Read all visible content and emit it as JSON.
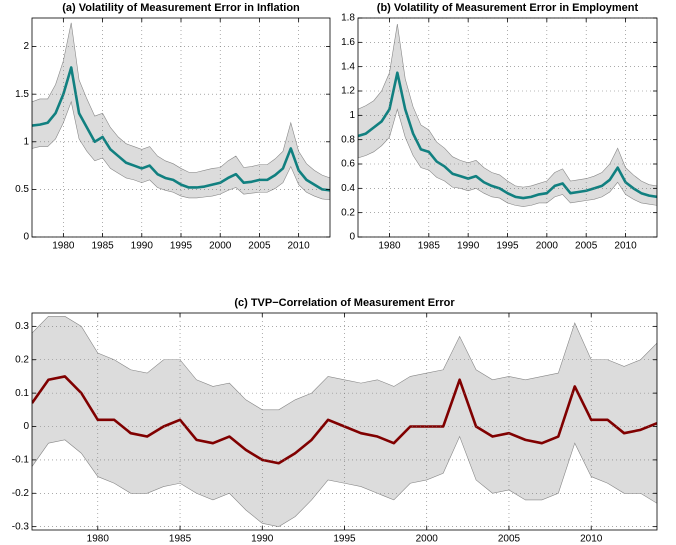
{
  "chart_data": [
    {
      "type": "line",
      "title": "(a) Volatility of Measurement Error in Inflation",
      "x": [
        1976,
        1977,
        1978,
        1979,
        1980,
        1981,
        1982,
        1983,
        1984,
        1985,
        1986,
        1987,
        1988,
        1989,
        1990,
        1991,
        1992,
        1993,
        1994,
        1995,
        1996,
        1997,
        1998,
        1999,
        2000,
        2001,
        2002,
        2003,
        2004,
        2005,
        2006,
        2007,
        2008,
        2009,
        2010,
        2011,
        2012,
        2013,
        2014
      ],
      "xlim": [
        1976,
        2014
      ],
      "xticks": [
        1980,
        1985,
        1990,
        1995,
        2000,
        2005,
        2010
      ],
      "ylim": [
        0,
        2.3
      ],
      "yticks": [
        0,
        0.5,
        1,
        1.5,
        2
      ],
      "grid": true,
      "series": [
        {
          "color": "#118080",
          "band_color": "#dcdcdc",
          "values": [
            1.17,
            1.18,
            1.2,
            1.3,
            1.5,
            1.78,
            1.3,
            1.15,
            1.0,
            1.05,
            0.92,
            0.85,
            0.78,
            0.75,
            0.72,
            0.75,
            0.66,
            0.62,
            0.6,
            0.55,
            0.52,
            0.52,
            0.53,
            0.55,
            0.57,
            0.62,
            0.66,
            0.57,
            0.58,
            0.6,
            0.6,
            0.65,
            0.72,
            0.93,
            0.7,
            0.6,
            0.55,
            0.5,
            0.49
          ],
          "lower": [
            0.93,
            0.95,
            0.95,
            1.03,
            1.2,
            1.42,
            1.03,
            0.9,
            0.8,
            0.83,
            0.72,
            0.67,
            0.62,
            0.6,
            0.57,
            0.6,
            0.52,
            0.49,
            0.47,
            0.43,
            0.41,
            0.41,
            0.42,
            0.43,
            0.45,
            0.49,
            0.52,
            0.45,
            0.46,
            0.47,
            0.47,
            0.51,
            0.57,
            0.74,
            0.55,
            0.47,
            0.43,
            0.4,
            0.39
          ],
          "upper": [
            1.42,
            1.45,
            1.45,
            1.6,
            1.85,
            2.25,
            1.65,
            1.45,
            1.27,
            1.3,
            1.15,
            1.05,
            0.98,
            0.95,
            0.92,
            0.95,
            0.85,
            0.8,
            0.77,
            0.72,
            0.68,
            0.68,
            0.7,
            0.72,
            0.73,
            0.8,
            0.85,
            0.73,
            0.74,
            0.76,
            0.76,
            0.82,
            0.9,
            1.2,
            0.9,
            0.77,
            0.7,
            0.65,
            0.62
          ]
        }
      ]
    },
    {
      "type": "line",
      "title": "(b) Volatility of Measurement Error in Employment",
      "x": [
        1976,
        1977,
        1978,
        1979,
        1980,
        1981,
        1982,
        1983,
        1984,
        1985,
        1986,
        1987,
        1988,
        1989,
        1990,
        1991,
        1992,
        1993,
        1994,
        1995,
        1996,
        1997,
        1998,
        1999,
        2000,
        2001,
        2002,
        2003,
        2004,
        2005,
        2006,
        2007,
        2008,
        2009,
        2010,
        2011,
        2012,
        2013,
        2014
      ],
      "xlim": [
        1976,
        2014
      ],
      "xticks": [
        1980,
        1985,
        1990,
        1995,
        2000,
        2005,
        2010
      ],
      "ylim": [
        0,
        1.8
      ],
      "yticks": [
        0,
        0.2,
        0.4,
        0.6,
        0.8,
        1,
        1.2,
        1.4,
        1.6,
        1.8
      ],
      "grid": true,
      "series": [
        {
          "color": "#118080",
          "band_color": "#dcdcdc",
          "values": [
            0.83,
            0.85,
            0.9,
            0.95,
            1.05,
            1.35,
            1.05,
            0.85,
            0.72,
            0.7,
            0.62,
            0.58,
            0.52,
            0.5,
            0.48,
            0.5,
            0.45,
            0.42,
            0.4,
            0.36,
            0.33,
            0.32,
            0.33,
            0.35,
            0.36,
            0.42,
            0.44,
            0.36,
            0.37,
            0.38,
            0.4,
            0.42,
            0.47,
            0.57,
            0.45,
            0.4,
            0.36,
            0.34,
            0.33
          ],
          "lower": [
            0.65,
            0.67,
            0.7,
            0.75,
            0.82,
            1.05,
            0.82,
            0.67,
            0.57,
            0.55,
            0.49,
            0.46,
            0.41,
            0.4,
            0.38,
            0.4,
            0.36,
            0.33,
            0.32,
            0.28,
            0.26,
            0.25,
            0.26,
            0.28,
            0.28,
            0.33,
            0.35,
            0.28,
            0.29,
            0.3,
            0.31,
            0.33,
            0.37,
            0.45,
            0.35,
            0.31,
            0.28,
            0.27,
            0.26
          ],
          "upper": [
            1.05,
            1.08,
            1.12,
            1.2,
            1.35,
            1.75,
            1.3,
            1.07,
            0.92,
            0.88,
            0.78,
            0.73,
            0.66,
            0.63,
            0.61,
            0.63,
            0.57,
            0.53,
            0.51,
            0.46,
            0.42,
            0.41,
            0.42,
            0.44,
            0.46,
            0.53,
            0.56,
            0.46,
            0.47,
            0.48,
            0.5,
            0.53,
            0.6,
            0.73,
            0.57,
            0.51,
            0.46,
            0.43,
            0.42
          ]
        }
      ]
    },
    {
      "type": "line",
      "title": "(c) TVP−Correlation of Measurement Error",
      "x": [
        1976,
        1977,
        1978,
        1979,
        1980,
        1981,
        1982,
        1983,
        1984,
        1985,
        1986,
        1987,
        1988,
        1989,
        1990,
        1991,
        1992,
        1993,
        1994,
        1995,
        1996,
        1997,
        1998,
        1999,
        2000,
        2001,
        2002,
        2003,
        2004,
        2005,
        2006,
        2007,
        2008,
        2009,
        2010,
        2011,
        2012,
        2013,
        2014
      ],
      "xlim": [
        1976,
        2014
      ],
      "xticks": [
        1980,
        1985,
        1990,
        1995,
        2000,
        2005,
        2010
      ],
      "ylim": [
        -0.31,
        0.34
      ],
      "yticks": [
        -0.3,
        -0.2,
        -0.1,
        0,
        0.1,
        0.2,
        0.3
      ],
      "grid": true,
      "series": [
        {
          "color": "#800000",
          "band_color": "#dcdcdc",
          "values": [
            0.07,
            0.14,
            0.15,
            0.1,
            0.02,
            0.02,
            -0.02,
            -0.03,
            0,
            0.02,
            -0.04,
            -0.05,
            -0.03,
            -0.07,
            -0.1,
            -0.11,
            -0.08,
            -0.04,
            0.02,
            0,
            -0.02,
            -0.03,
            -0.05,
            0,
            0,
            0,
            0.14,
            0,
            -0.03,
            -0.02,
            -0.04,
            -0.05,
            -0.03,
            0.12,
            0.02,
            0.02,
            -0.02,
            -0.01,
            0.01
          ],
          "lower": [
            -0.12,
            -0.05,
            -0.04,
            -0.08,
            -0.15,
            -0.17,
            -0.2,
            -0.2,
            -0.18,
            -0.17,
            -0.2,
            -0.22,
            -0.2,
            -0.25,
            -0.29,
            -0.3,
            -0.27,
            -0.22,
            -0.16,
            -0.17,
            -0.18,
            -0.2,
            -0.22,
            -0.17,
            -0.16,
            -0.14,
            -0.03,
            -0.16,
            -0.2,
            -0.19,
            -0.22,
            -0.22,
            -0.2,
            -0.05,
            -0.15,
            -0.17,
            -0.2,
            -0.2,
            -0.23
          ],
          "upper": [
            0.28,
            0.33,
            0.33,
            0.3,
            0.22,
            0.2,
            0.17,
            0.16,
            0.2,
            0.2,
            0.14,
            0.12,
            0.13,
            0.08,
            0.05,
            0.05,
            0.08,
            0.1,
            0.15,
            0.14,
            0.13,
            0.14,
            0.12,
            0.15,
            0.16,
            0.17,
            0.27,
            0.17,
            0.14,
            0.15,
            0.14,
            0.15,
            0.16,
            0.31,
            0.2,
            0.2,
            0.18,
            0.2,
            0.25
          ]
        }
      ]
    }
  ]
}
